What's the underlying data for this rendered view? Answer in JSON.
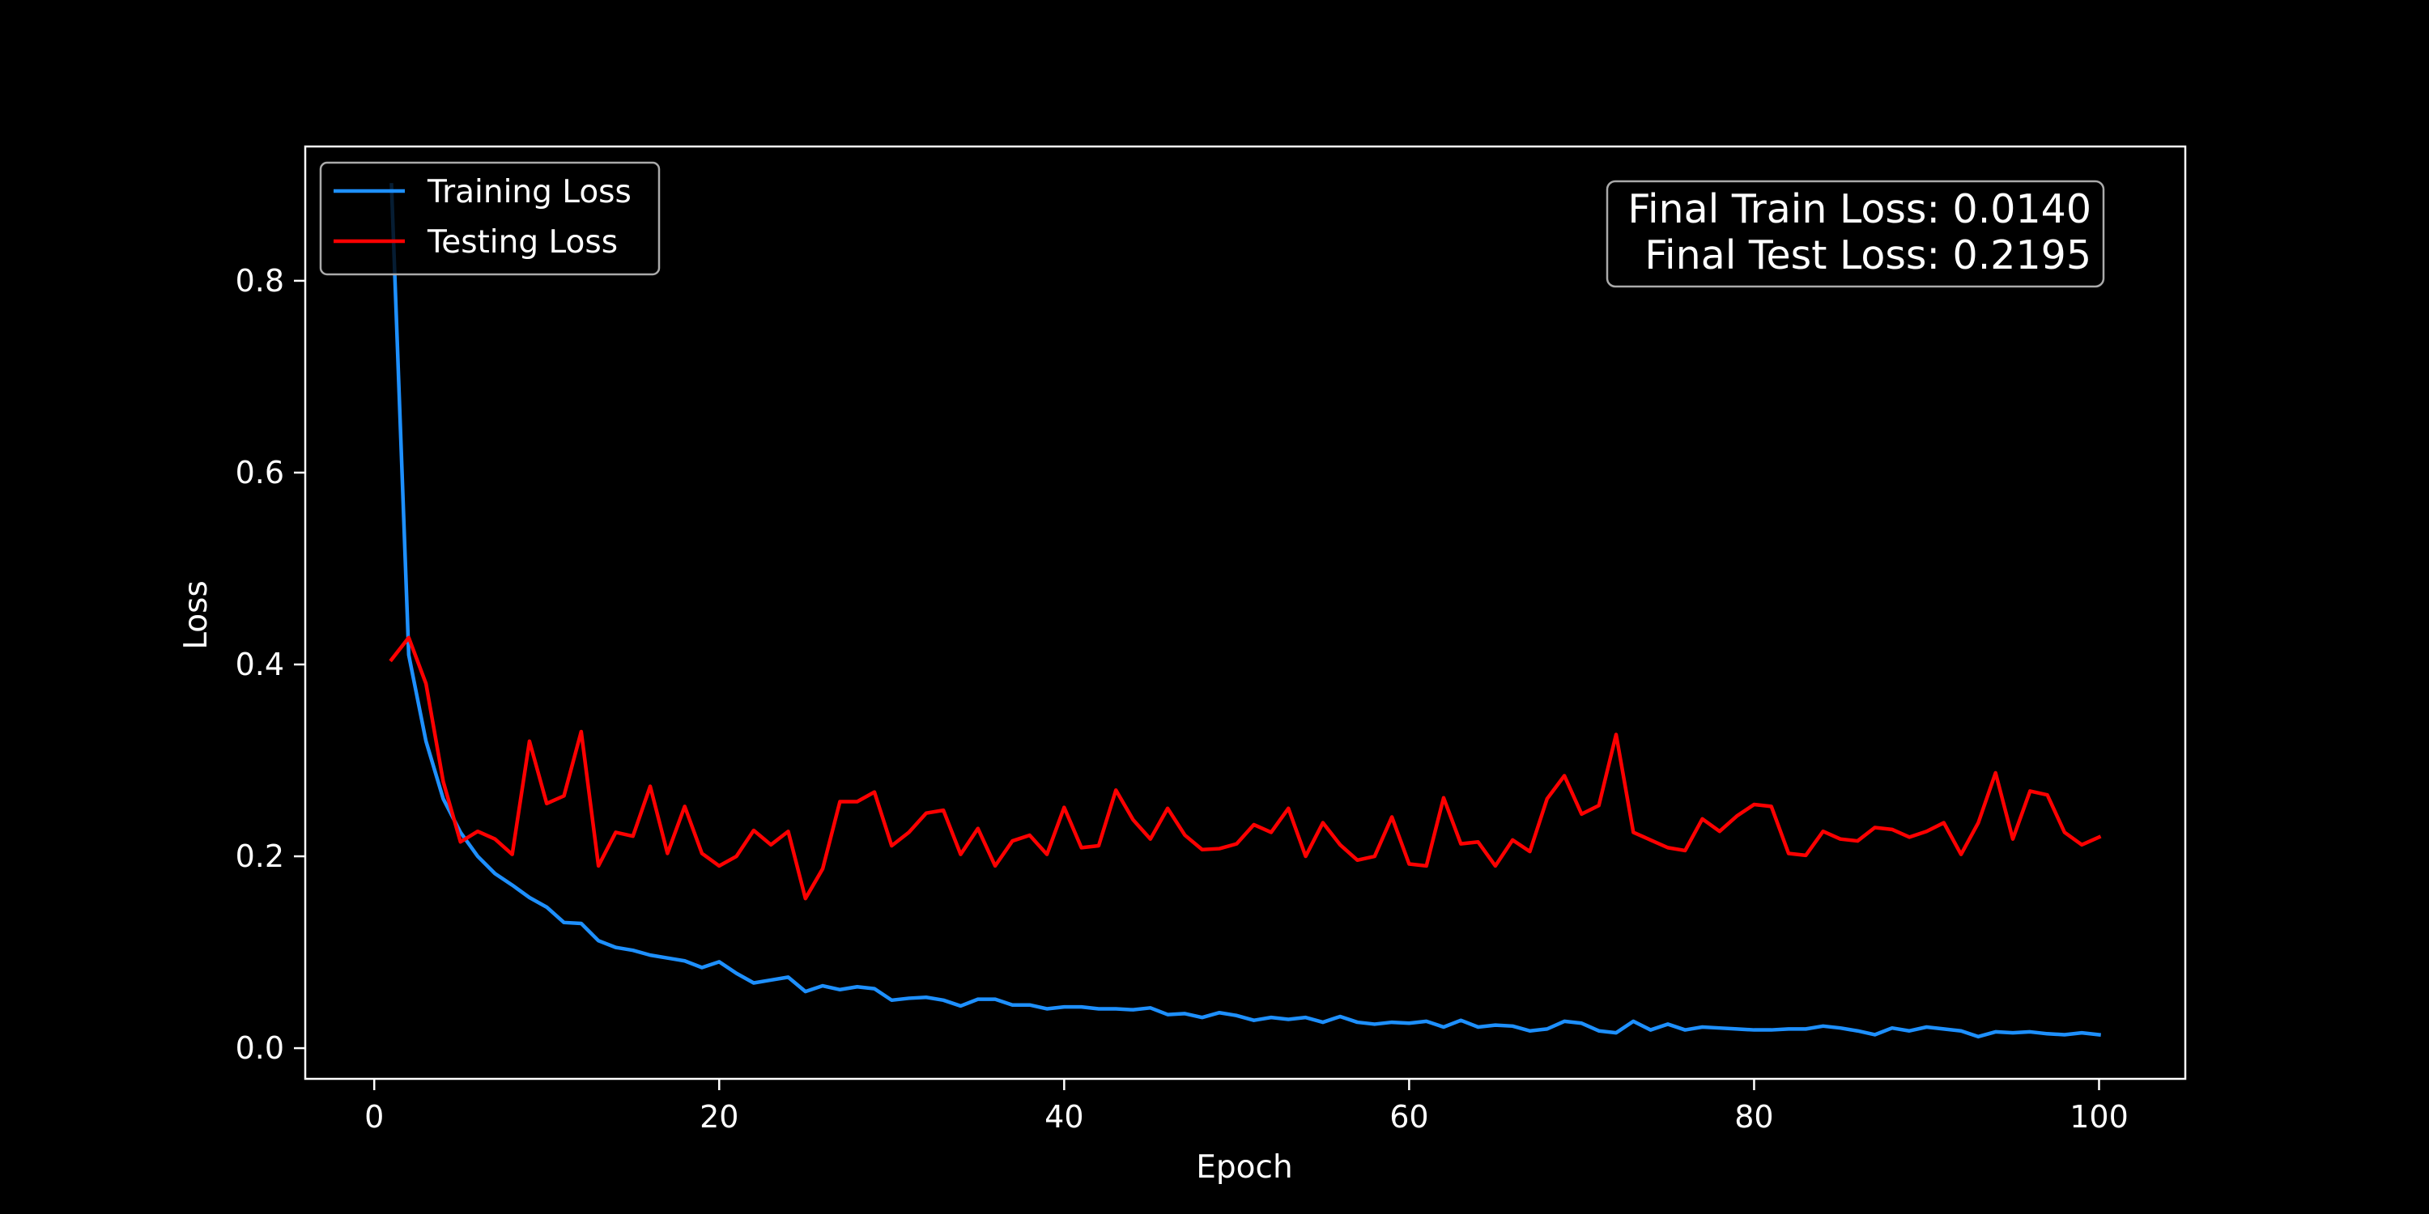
{
  "chart_data": {
    "type": "line",
    "title": "",
    "xlabel": "Epoch",
    "ylabel": "Loss",
    "xlim": [
      -4,
      105
    ],
    "ylim": [
      -0.032,
      0.94
    ],
    "xticks": [
      0,
      20,
      40,
      60,
      80,
      100
    ],
    "yticks": [
      0.0,
      0.2,
      0.4,
      0.6,
      0.8
    ],
    "xtick_labels": [
      "0",
      "20",
      "40",
      "60",
      "80",
      "100"
    ],
    "ytick_labels": [
      "0.0",
      "0.2",
      "0.4",
      "0.6",
      "0.8"
    ],
    "grid": false,
    "legend_position": "top-left",
    "background": "#000000",
    "x": [
      1,
      2,
      3,
      4,
      5,
      6,
      7,
      8,
      9,
      10,
      11,
      12,
      13,
      14,
      15,
      16,
      17,
      18,
      19,
      20,
      21,
      22,
      23,
      24,
      25,
      26,
      27,
      28,
      29,
      30,
      31,
      32,
      33,
      34,
      35,
      36,
      37,
      38,
      39,
      40,
      41,
      42,
      43,
      44,
      45,
      46,
      47,
      48,
      49,
      50,
      51,
      52,
      53,
      54,
      55,
      56,
      57,
      58,
      59,
      60,
      61,
      62,
      63,
      64,
      65,
      66,
      67,
      68,
      69,
      70,
      71,
      72,
      73,
      74,
      75,
      76,
      77,
      78,
      79,
      80,
      81,
      82,
      83,
      84,
      85,
      86,
      87,
      88,
      89,
      90,
      91,
      92,
      93,
      94,
      95,
      96,
      97,
      98,
      99,
      100
    ],
    "series": [
      {
        "name": "Training Loss",
        "color": "#1e90ff",
        "values": [
          0.9,
          0.41,
          0.32,
          0.26,
          0.225,
          0.2,
          0.182,
          0.17,
          0.157,
          0.147,
          0.131,
          0.13,
          0.112,
          0.105,
          0.102,
          0.097,
          0.094,
          0.091,
          0.084,
          0.09,
          0.078,
          0.068,
          0.071,
          0.074,
          0.059,
          0.065,
          0.061,
          0.064,
          0.062,
          0.05,
          0.052,
          0.053,
          0.05,
          0.044,
          0.051,
          0.051,
          0.045,
          0.045,
          0.041,
          0.043,
          0.043,
          0.041,
          0.041,
          0.04,
          0.042,
          0.035,
          0.036,
          0.032,
          0.037,
          0.034,
          0.029,
          0.032,
          0.03,
          0.032,
          0.027,
          0.033,
          0.027,
          0.025,
          0.027,
          0.026,
          0.028,
          0.022,
          0.029,
          0.022,
          0.024,
          0.023,
          0.018,
          0.02,
          0.028,
          0.026,
          0.018,
          0.016,
          0.028,
          0.019,
          0.025,
          0.019,
          0.022,
          0.021,
          0.02,
          0.019,
          0.019,
          0.02,
          0.02,
          0.023,
          0.021,
          0.018,
          0.014,
          0.021,
          0.018,
          0.022,
          0.02,
          0.018,
          0.012,
          0.017,
          0.016,
          0.017,
          0.015,
          0.014,
          0.016,
          0.014
        ]
      },
      {
        "name": "Testing Loss",
        "color": "#ff0000",
        "values": [
          0.405,
          0.428,
          0.38,
          0.278,
          0.215,
          0.226,
          0.218,
          0.202,
          0.32,
          0.255,
          0.263,
          0.33,
          0.19,
          0.225,
          0.221,
          0.273,
          0.203,
          0.252,
          0.203,
          0.19,
          0.2,
          0.227,
          0.212,
          0.226,
          0.156,
          0.187,
          0.257,
          0.257,
          0.267,
          0.211,
          0.225,
          0.245,
          0.248,
          0.202,
          0.229,
          0.19,
          0.216,
          0.222,
          0.202,
          0.251,
          0.209,
          0.211,
          0.269,
          0.238,
          0.218,
          0.25,
          0.222,
          0.207,
          0.208,
          0.213,
          0.233,
          0.225,
          0.25,
          0.2,
          0.235,
          0.212,
          0.196,
          0.2,
          0.241,
          0.192,
          0.19,
          0.261,
          0.213,
          0.215,
          0.19,
          0.217,
          0.205,
          0.26,
          0.284,
          0.244,
          0.253,
          0.327,
          0.225,
          0.217,
          0.209,
          0.206,
          0.239,
          0.226,
          0.242,
          0.254,
          0.252,
          0.203,
          0.201,
          0.226,
          0.218,
          0.216,
          0.23,
          0.228,
          0.22,
          0.226,
          0.235,
          0.202,
          0.235,
          0.287,
          0.218,
          0.268,
          0.264,
          0.225,
          0.212,
          0.22
        ]
      }
    ],
    "annotation": {
      "lines": [
        "Final Train Loss: 0.0140",
        "Final Test Loss: 0.2195"
      ],
      "position": "top-right"
    }
  }
}
